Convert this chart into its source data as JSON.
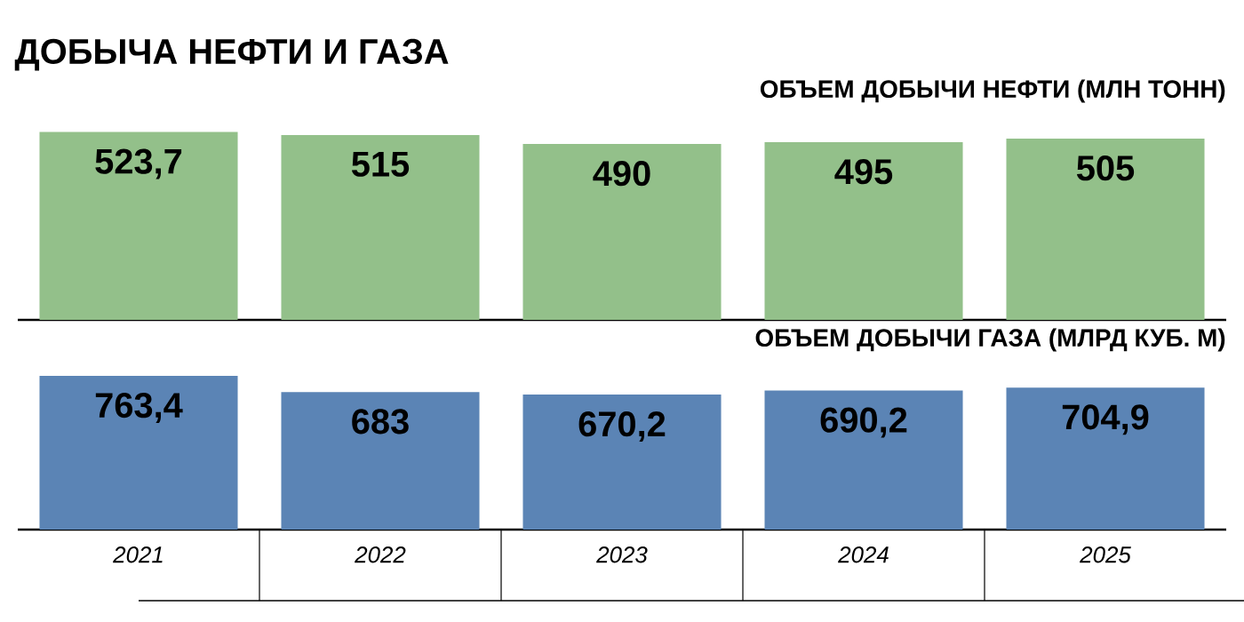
{
  "chart_data": [
    {
      "type": "bar",
      "title": "ДОБЫЧА НЕФТИ И ГАЗА",
      "subtitle": "ОБЪЕМ ДОБЫЧИ НЕФТИ (МЛН ТОНН)",
      "categories": [
        "2021",
        "2022",
        "2023",
        "2024",
        "2025"
      ],
      "values": [
        523.7,
        515,
        490,
        495,
        505
      ],
      "value_labels": [
        "523,7",
        "515",
        "490",
        "495",
        "505"
      ],
      "color": "#93c08a",
      "tick_labels": false
    },
    {
      "type": "bar",
      "title": "ОБЪЕМ ДОБЫЧИ ГАЗА (МЛРД КУБ. М)",
      "categories": [
        "2021",
        "2022",
        "2023",
        "2024",
        "2025"
      ],
      "values": [
        763.4,
        683,
        670.2,
        690.2,
        704.9
      ],
      "value_labels": [
        "763,4",
        "683",
        "670,2",
        "690,2",
        "704,9"
      ],
      "color": "#5b84b5",
      "tick_labels": "x"
    }
  ]
}
